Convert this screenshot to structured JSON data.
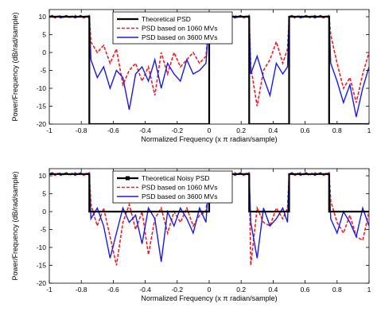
{
  "chart_data": [
    {
      "type": "line",
      "xlabel": "Normalized Frequency (x π radian/sample)",
      "ylabel": "Power/Frequency (dB/rad/sample)",
      "xlim": [
        -1,
        1
      ],
      "ylim": [
        -20,
        12
      ],
      "xticks": [
        -1,
        -0.8,
        -0.6,
        -0.4,
        -0.2,
        0,
        0.2,
        0.4,
        0.6,
        0.8,
        1
      ],
      "xtick_labels": [
        "-1",
        "-0.8",
        "-0.6",
        "-0.4",
        "-0.2",
        "0",
        "0.2",
        "0.4",
        "0.6",
        "0.8",
        "1"
      ],
      "yticks": [
        -20,
        -15,
        -10,
        -5,
        0,
        5,
        10
      ],
      "ytick_labels": [
        "-20",
        "-15",
        "-10",
        "-5",
        "0",
        "5",
        "10"
      ],
      "legend_position": "top-center",
      "grid": false,
      "passbands": [
        [
          -1,
          -0.75
        ],
        [
          0,
          0.25
        ],
        [
          0.5,
          0.75
        ]
      ],
      "pass_level_db": 10,
      "series": [
        {
          "name": "Theoretical PSD",
          "color": "#000000",
          "style": "solid",
          "kind": "ideal"
        },
        {
          "name": "PSD based on 1060 MVs",
          "color": "#e8202a",
          "style": "dashed",
          "kind": "estimate",
          "stop_x": [
            -0.74,
            -0.7,
            -0.66,
            -0.62,
            -0.58,
            -0.54,
            -0.5,
            -0.46,
            -0.42,
            -0.38,
            -0.34,
            -0.3,
            -0.26,
            -0.22,
            -0.18,
            -0.14,
            -0.1,
            -0.06,
            -0.02,
            0.26,
            0.3,
            0.34,
            0.38,
            0.42,
            0.46,
            0.49,
            0.76,
            0.8,
            0.84,
            0.88,
            0.92,
            0.96,
            1.0
          ],
          "stop_y": [
            3,
            0,
            2,
            -3,
            1,
            -9,
            -5,
            -3,
            -8,
            -4,
            -12,
            0,
            -6,
            0,
            -4,
            -2,
            0,
            -3,
            -1,
            -4,
            -15,
            -5,
            -2,
            3,
            -3,
            1,
            5,
            -3,
            -10,
            -7,
            -14,
            -6,
            0
          ]
        },
        {
          "name": "PSD based on 3600 MVs",
          "color": "#1a1ae0",
          "style": "solid",
          "kind": "estimate",
          "stop_x": [
            -0.74,
            -0.7,
            -0.66,
            -0.62,
            -0.58,
            -0.54,
            -0.5,
            -0.46,
            -0.42,
            -0.38,
            -0.34,
            -0.3,
            -0.26,
            -0.22,
            -0.18,
            -0.14,
            -0.1,
            -0.06,
            -0.02,
            0.26,
            0.3,
            0.34,
            0.38,
            0.42,
            0.46,
            0.49,
            0.76,
            0.8,
            0.84,
            0.88,
            0.92,
            0.96,
            1.0
          ],
          "stop_y": [
            -2,
            -7,
            -4,
            -10,
            -5,
            -7,
            -16,
            -6,
            -4,
            -8,
            -2,
            -10,
            -3,
            -6,
            -8,
            -2,
            -6,
            -5,
            -3,
            -6,
            -1,
            -7,
            -12,
            -3,
            -6,
            -4,
            -3,
            -8,
            -14,
            -9,
            -18,
            -10,
            -4
          ]
        }
      ]
    },
    {
      "type": "line",
      "xlabel": "Normalized Frequency (x π radian/sample)",
      "ylabel": "Power/Frequency (dB/rad/sample)",
      "xlim": [
        -1,
        1
      ],
      "ylim": [
        -20,
        12
      ],
      "xticks": [
        -1,
        -0.8,
        -0.6,
        -0.4,
        -0.2,
        0,
        0.2,
        0.4,
        0.6,
        0.8,
        1
      ],
      "xtick_labels": [
        "-1",
        "-0.8",
        "-0.6",
        "-0.4",
        "-0.2",
        "0",
        "0.2",
        "0.4",
        "0.6",
        "0.8",
        "1"
      ],
      "yticks": [
        -20,
        -15,
        -10,
        -5,
        0,
        5,
        10
      ],
      "ytick_labels": [
        "-20",
        "-15",
        "-10",
        "-5",
        "0",
        "5",
        "10"
      ],
      "legend_position": "top-center",
      "grid": false,
      "passbands": [
        [
          -1,
          -0.75
        ],
        [
          0,
          0.25
        ],
        [
          0.5,
          0.75
        ]
      ],
      "pass_level_db": 10.5,
      "stop_level_db": 0,
      "series": [
        {
          "name": "Theoretical Noisy PSD",
          "color": "#000000",
          "style": "solid-marker",
          "kind": "ideal"
        },
        {
          "name": "PSD based on 1060 MVs",
          "color": "#e8202a",
          "style": "dashed",
          "kind": "estimate",
          "stop_x": [
            -0.74,
            -0.7,
            -0.66,
            -0.62,
            -0.58,
            -0.54,
            -0.5,
            -0.46,
            -0.42,
            -0.38,
            -0.34,
            -0.3,
            -0.26,
            -0.22,
            -0.18,
            -0.14,
            -0.1,
            -0.06,
            -0.02,
            0.26,
            0.3,
            0.34,
            0.38,
            0.42,
            0.46,
            0.49,
            0.76,
            0.8,
            0.84,
            0.88,
            0.92,
            0.96,
            1.0
          ],
          "stop_y": [
            2,
            -4,
            1,
            -7,
            -15,
            -3,
            2,
            -5,
            0,
            -12,
            -2,
            1,
            -6,
            0,
            -3,
            1,
            -4,
            -1,
            0,
            -15,
            1,
            -3,
            -4,
            1,
            -2,
            1,
            3,
            -3,
            -6,
            -1,
            -7,
            -8,
            0
          ]
        },
        {
          "name": "PSD based on 3600 MVs",
          "color": "#1a1ae0",
          "style": "solid",
          "kind": "estimate",
          "stop_x": [
            -0.74,
            -0.7,
            -0.66,
            -0.62,
            -0.58,
            -0.54,
            -0.5,
            -0.46,
            -0.42,
            -0.38,
            -0.34,
            -0.3,
            -0.26,
            -0.22,
            -0.18,
            -0.14,
            -0.1,
            -0.06,
            -0.02,
            0.26,
            0.3,
            0.34,
            0.38,
            0.42,
            0.46,
            0.49,
            0.76,
            0.8,
            0.84,
            0.88,
            0.92,
            0.96,
            1.0
          ],
          "stop_y": [
            -2,
            1,
            -4,
            -13,
            -6,
            1,
            -3,
            -1,
            -9,
            1,
            -2,
            -14,
            0,
            -4,
            1,
            -2,
            -6,
            1,
            -3,
            -3,
            -13,
            1,
            -4,
            -2,
            1,
            -3,
            -2,
            -6,
            0,
            -3,
            -7,
            1,
            -4
          ]
        }
      ]
    }
  ]
}
